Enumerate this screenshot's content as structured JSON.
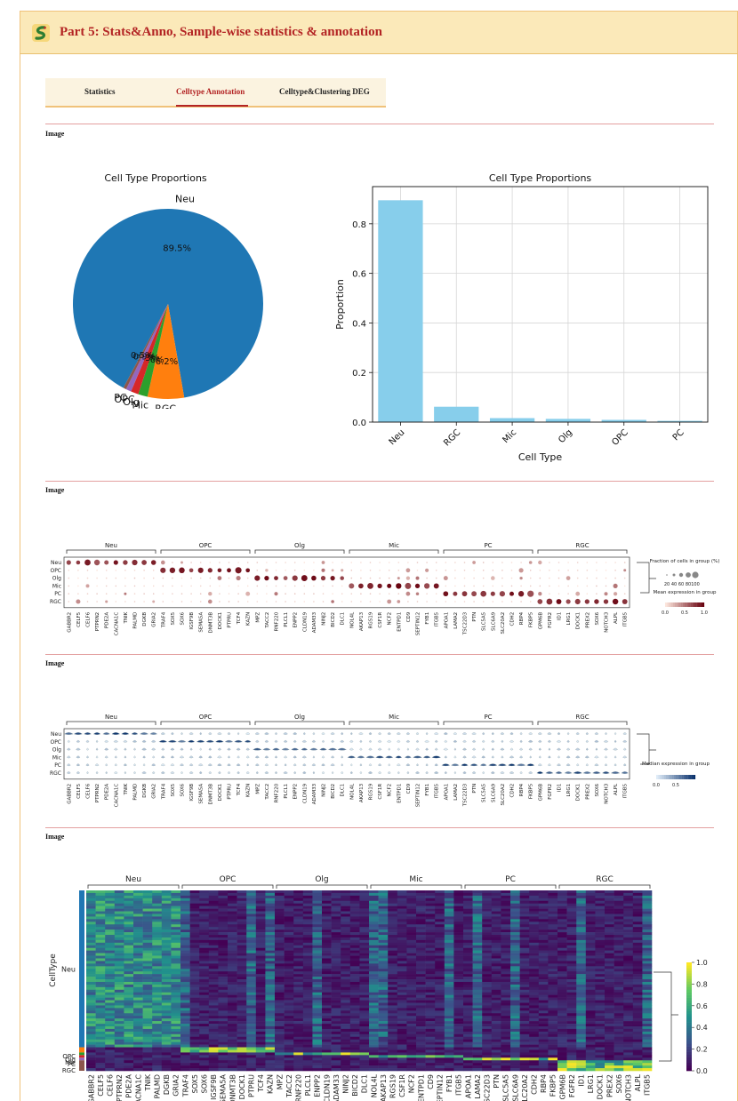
{
  "header": {
    "title": "Part 5: Stats&Anno, Sample-wise statistics & annotation",
    "logo_icon": "snake-logo-icon"
  },
  "tabs": [
    {
      "label": "Statistics",
      "active": false
    },
    {
      "label": "Celltype Annotation",
      "active": true
    },
    {
      "label": "Celltype&Clustering DEG",
      "active": false
    }
  ],
  "image_labels": [
    "Image",
    "Image",
    "Image",
    "Image"
  ],
  "colors": {
    "accent": "#b32424",
    "header_bg": "#fbe9b9",
    "pie_neu": "#1f77b4",
    "pie_rgc": "#ff7f0e",
    "pie_mic": "#2ca02c",
    "pie_olg": "#d62728",
    "pie_opc": "#9467bd",
    "pie_pc": "#8c564b",
    "bar": "#87ceeb"
  },
  "chart_data": [
    {
      "type": "pie",
      "title": "Cell Type Proportions",
      "labels": [
        "Neu",
        "RGC",
        "Mic",
        "Olg",
        "OPC",
        "PC"
      ],
      "values": [
        89.5,
        6.2,
        1.6,
        1.3,
        0.9,
        0.5
      ],
      "pct_labels": [
        "89.5%",
        "6.2%",
        "1.6%",
        "1.3%",
        "0.9%",
        "0.5%"
      ]
    },
    {
      "type": "bar",
      "title": "Cell Type Proportions",
      "xlabel": "Cell Type",
      "ylabel": "Proportion",
      "categories": [
        "Neu",
        "RGC",
        "Mic",
        "Olg",
        "OPC",
        "PC"
      ],
      "values": [
        0.895,
        0.062,
        0.016,
        0.013,
        0.009,
        0.005
      ],
      "ylim": [
        0,
        0.95
      ],
      "yticks": [
        "0.0",
        "0.2",
        "0.4",
        "0.6",
        "0.8"
      ],
      "grid": true
    },
    {
      "type": "heatmap",
      "subtype": "dotplot",
      "groups": [
        "Neu",
        "OPC",
        "Olg",
        "Mic",
        "PC",
        "RGC"
      ],
      "rows": [
        "Neu",
        "OPC",
        "Olg",
        "Mic",
        "PC",
        "RGC"
      ],
      "genes": [
        "GABBR2",
        "CELF5",
        "CELF6",
        "PTPRN2",
        "PDE2A",
        "CACNA1C",
        "TNIK",
        "PALMD",
        "DGKB",
        "GRIA2",
        "TRAF4",
        "SOX5",
        "SOX6",
        "IGSF9B",
        "SEMA5A",
        "DNMT3B",
        "DOCK1",
        "PTPRU",
        "TCF4",
        "KAZN",
        "MPZ",
        "TACC2",
        "RNF220",
        "PLCL1",
        "ENPP2",
        "CLDN19",
        "ADAM33",
        "NINJ2",
        "BICD2",
        "DLC1",
        "NOL4L",
        "AKAP13",
        "RGS19",
        "CSF1R",
        "NCF2",
        "ENTPD1",
        "CD9",
        "SEPTIN12",
        "FYB1",
        "ITGB5",
        "APOA1",
        "LAMA2",
        "TSC22D3",
        "PTN",
        "SLC5A5",
        "SLC6A9",
        "SLC20A2",
        "CDH2",
        "RBP4",
        "FKBP5",
        "GPM6B",
        "FGFR2",
        "ID1",
        "LRG1",
        "DOCK1",
        "PREX2",
        "SOX6",
        "NOTCH3",
        "ALPL",
        "ITGB5"
      ],
      "legend": {
        "fraction_title": "Fraction of cells in group (%)",
        "fraction_ticks": [
          "20",
          "40",
          "60",
          "80",
          "100"
        ],
        "mean_title": "Mean expression in group",
        "color_ticks": [
          "0.0",
          "0.5",
          "1.0"
        ]
      }
    },
    {
      "type": "heatmap",
      "subtype": "violin",
      "groups": [
        "Neu",
        "OPC",
        "Olg",
        "Mic",
        "PC",
        "RGC"
      ],
      "rows": [
        "Neu",
        "OPC",
        "Olg",
        "Mic",
        "PC",
        "RGC"
      ],
      "legend": {
        "title": "Median expression in group",
        "color_ticks": [
          "0.0",
          "0.5"
        ]
      }
    },
    {
      "type": "heatmap",
      "ylabel": "CellType",
      "groups": [
        "Neu",
        "OPC",
        "Olg",
        "Mic",
        "PC",
        "RGC"
      ],
      "row_labels": [
        "Neu",
        "OPC",
        "Olg",
        "Mic",
        "PC",
        "RGC"
      ],
      "genes": [
        "GABBR2",
        "CELF5",
        "CELF6",
        "PTPRN2",
        "PDE2A",
        "CACNA1C",
        "TNIK",
        "PALMD",
        "DGKB",
        "GRIA2",
        "TRAF4",
        "SOX5",
        "SOX6",
        "IGSF9B",
        "SEMA5A",
        "DNMT3B",
        "DOCK1",
        "PTPRU",
        "TCF4",
        "KAZN",
        "MPZ",
        "TACC2",
        "RNF220",
        "PLCL1",
        "ENPP2",
        "CLDN19",
        "ADAM33",
        "NINJ2",
        "BICD2",
        "DLC1",
        "NOL4L",
        "AKAP13",
        "RGS19",
        "CSF1R",
        "NCF2",
        "ENTPD1",
        "CD9",
        "SEPTIN12",
        "FYB1",
        "ITGB5",
        "APOA1",
        "LAMA2",
        "TSC22D3",
        "PTN",
        "SLC5A5",
        "SLC6A9",
        "SLC20A2",
        "CDH2",
        "RBP4",
        "FKBP5",
        "GPM6B",
        "FGFR2",
        "ID1",
        "LRG1",
        "DOCK1",
        "PREX2",
        "SOX6",
        "NOTCH3",
        "ALPL",
        "ITGB5"
      ],
      "colorbar_ticks": [
        "0.0",
        "0.2",
        "0.4",
        "0.6",
        "0.8",
        "1.0"
      ]
    }
  ]
}
